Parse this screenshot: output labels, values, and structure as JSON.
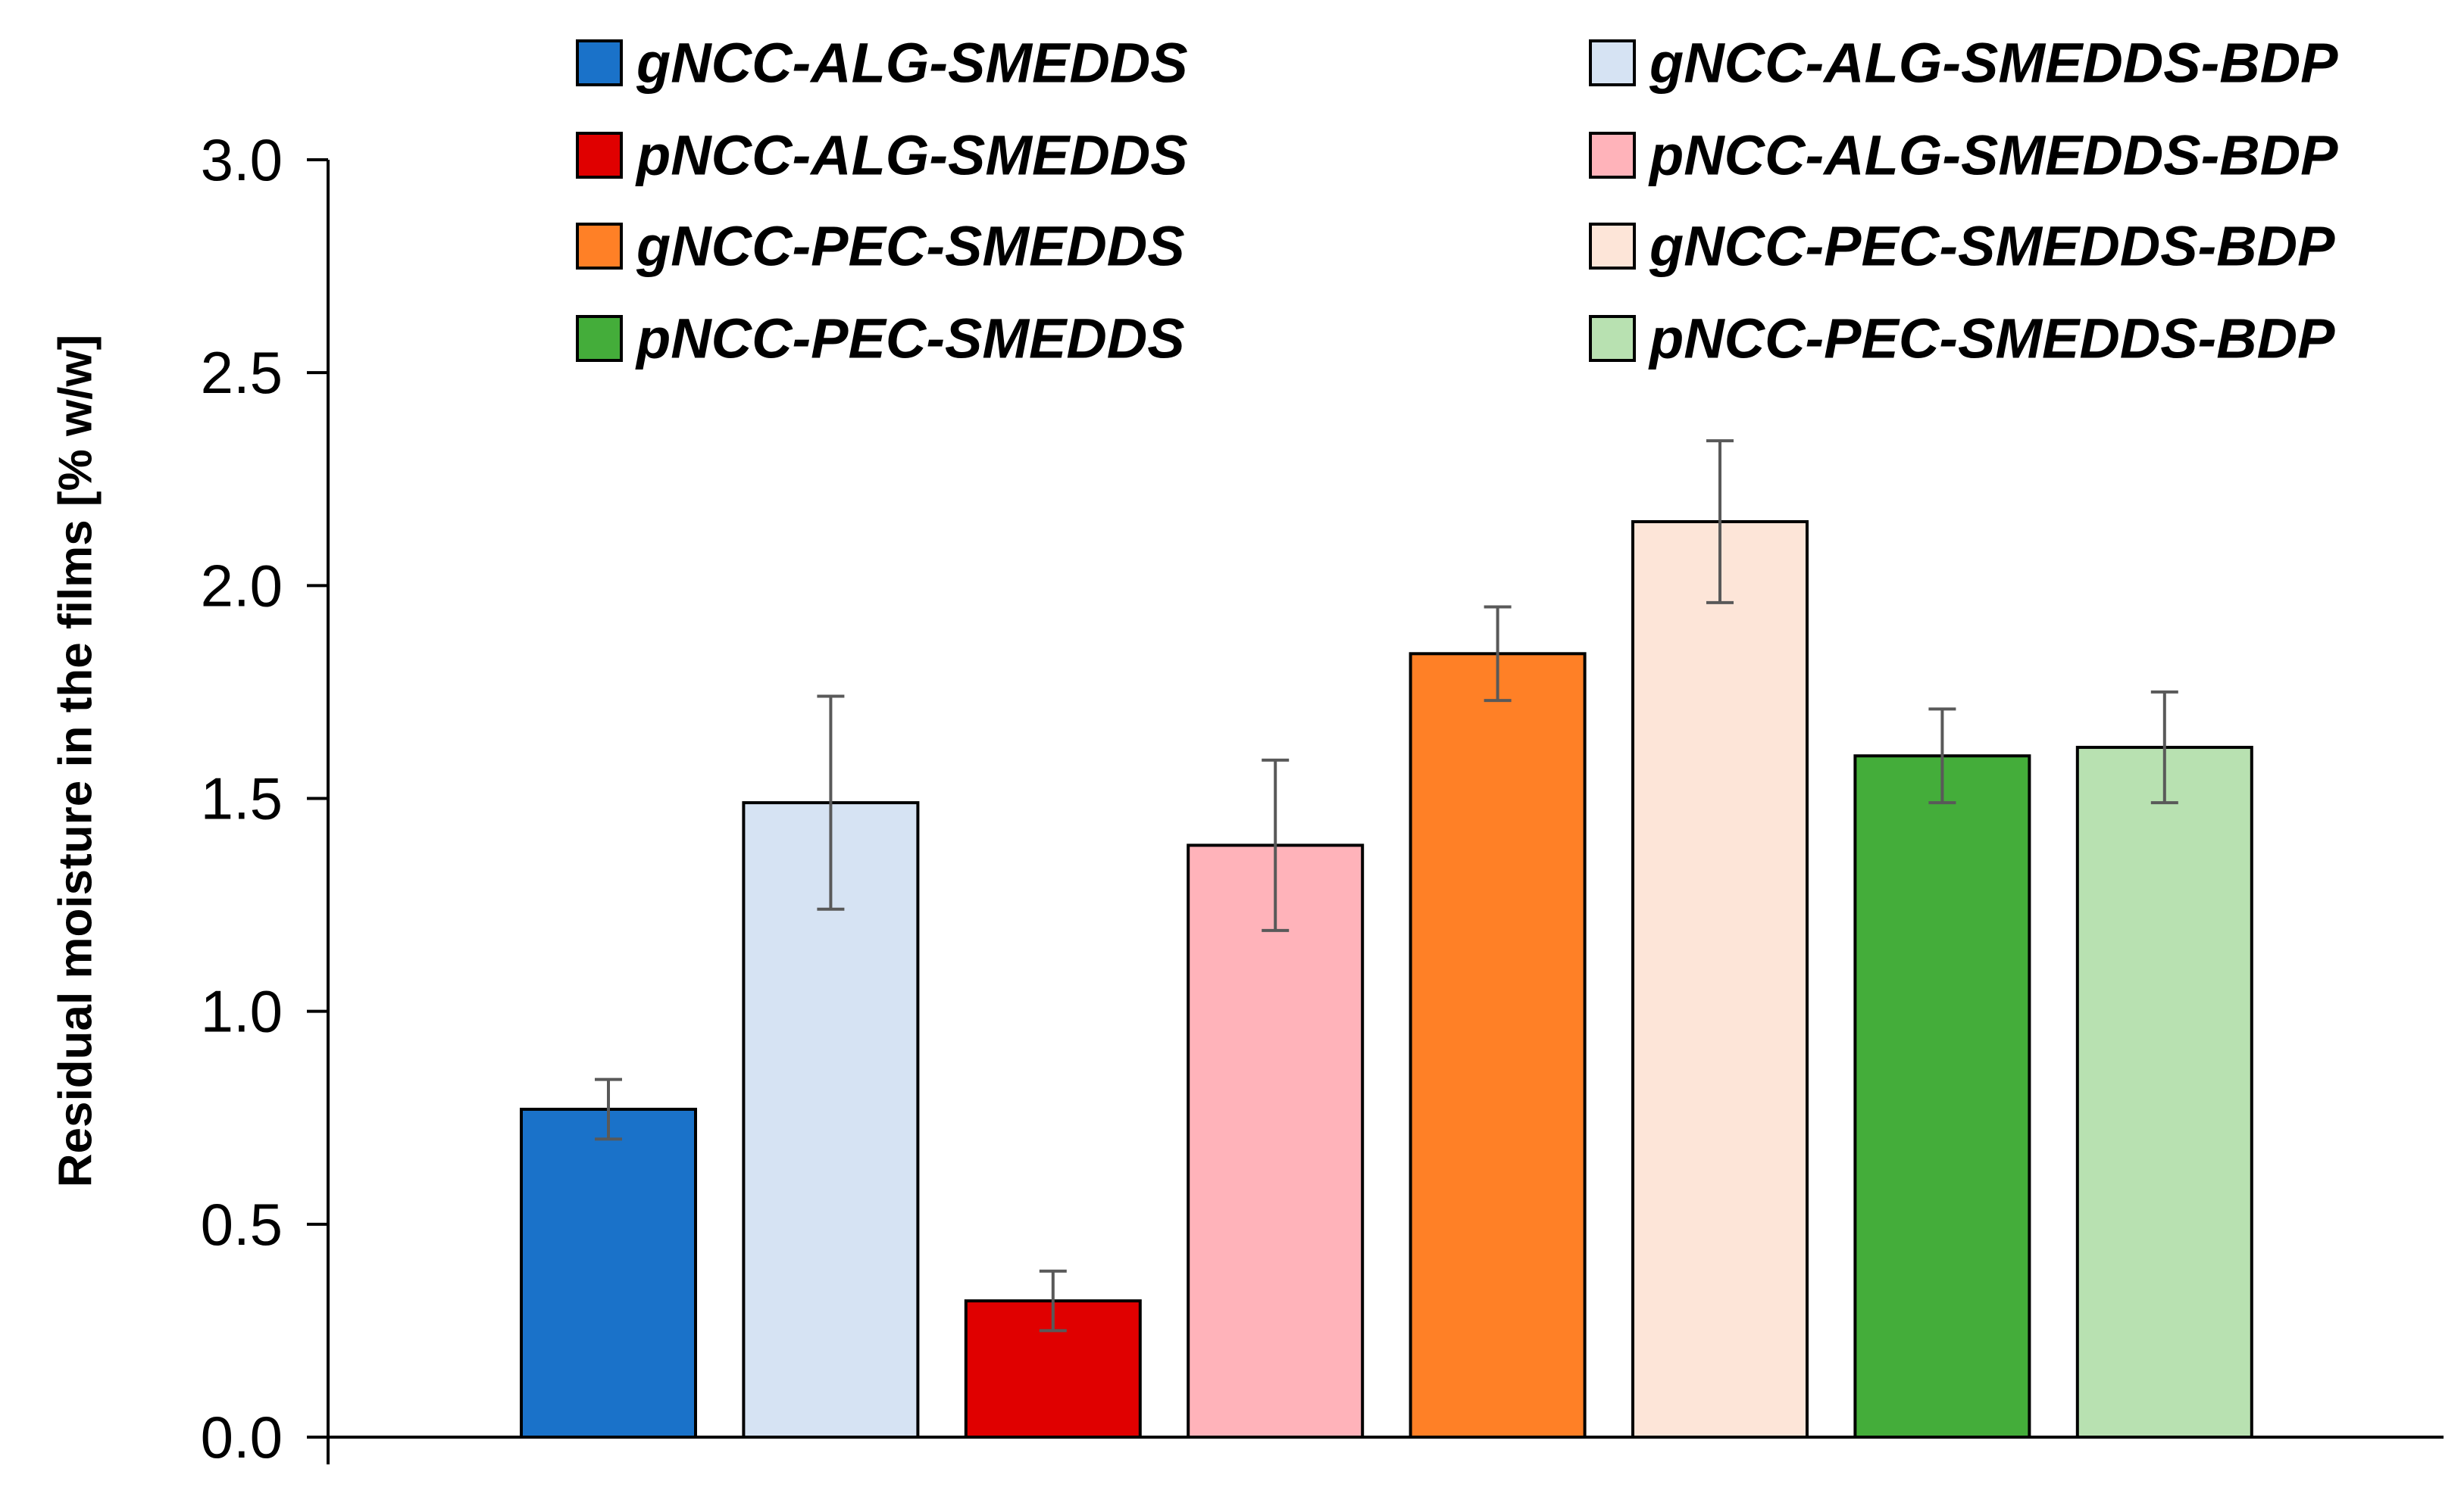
{
  "chart_data": {
    "type": "bar",
    "title": "",
    "xlabel": "",
    "ylabel": "Residual moisture in the films [% w/w]",
    "ylim": [
      0,
      3.0
    ],
    "yticks": [
      0.0,
      0.5,
      1.0,
      1.5,
      2.0,
      2.5,
      3.0
    ],
    "ytick_labels": [
      "0.0",
      "0.5",
      "1.0",
      "1.5",
      "2.0",
      "2.5",
      "3.0"
    ],
    "grid": false,
    "legend_position": "top",
    "series": [
      {
        "name": "gNCC-ALG-SMEDDS",
        "value": 0.77,
        "error": 0.07,
        "color": "#1a72c9"
      },
      {
        "name": "gNCC-ALG-SMEDDS-BDP",
        "value": 1.49,
        "error": 0.25,
        "color": "#d6e3f3"
      },
      {
        "name": "pNCC-ALG-SMEDDS",
        "value": 0.32,
        "error": 0.07,
        "color": "#e00000"
      },
      {
        "name": "pNCC-ALG-SMEDDS-BDP",
        "value": 1.39,
        "error": 0.2,
        "color": "#ffb3ba"
      },
      {
        "name": "gNCC-PEC-SMEDDS",
        "value": 1.84,
        "error": 0.11,
        "color": "#ff8026"
      },
      {
        "name": "gNCC-PEC-SMEDDS-BDP",
        "value": 2.15,
        "error": 0.19,
        "color": "#fde5d8"
      },
      {
        "name": "pNCC-PEC-SMEDDS",
        "value": 1.6,
        "error": 0.11,
        "color": "#44ad3a"
      },
      {
        "name": "pNCC-PEC-SMEDDS-BDP",
        "value": 1.62,
        "error": 0.13,
        "color": "#b8e1b1"
      }
    ],
    "legend_order": [
      "gNCC-ALG-SMEDDS",
      "gNCC-ALG-SMEDDS-BDP",
      "pNCC-ALG-SMEDDS",
      "pNCC-ALG-SMEDDS-BDP",
      "gNCC-PEC-SMEDDS",
      "gNCC-PEC-SMEDDS-BDP",
      "pNCC-PEC-SMEDDS",
      "pNCC-PEC-SMEDDS-BDP"
    ]
  },
  "colors": {
    "axis": "#000000",
    "bar_outline": "#000000",
    "error_bar": "#595959"
  }
}
